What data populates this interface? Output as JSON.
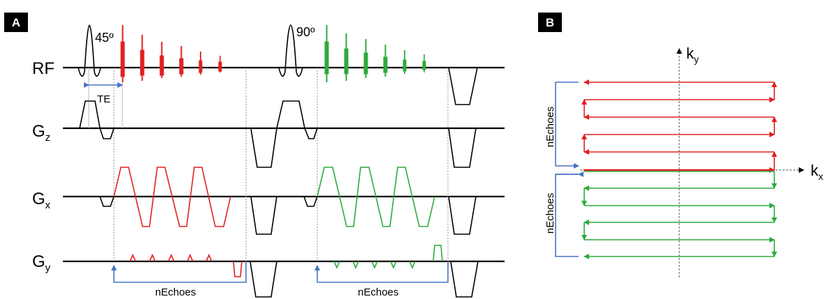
{
  "panels": {
    "a": "A",
    "b": "B"
  },
  "rows": {
    "rf": "RF",
    "gz": {
      "main": "G",
      "sub": "z"
    },
    "gx": {
      "main": "G",
      "sub": "x"
    },
    "gy": {
      "main": "G",
      "sub": "y"
    }
  },
  "annotations": {
    "flip1": "45º",
    "flip2": "90º",
    "te": "TE",
    "n_echoes_a1": "nEchoes",
    "n_echoes_a2": "nEchoes",
    "n_echoes_b_top": "nEchoes",
    "n_echoes_b_bottom": "nEchoes"
  },
  "kspace_axes": {
    "kx": {
      "main": "k",
      "sub": "x"
    },
    "ky": {
      "main": "k",
      "sub": "y"
    }
  },
  "colors": {
    "black": "#000000",
    "red": "#e02020",
    "green": "#2eaa3c",
    "blue": "#4a72c4",
    "grid": "#999999"
  }
}
